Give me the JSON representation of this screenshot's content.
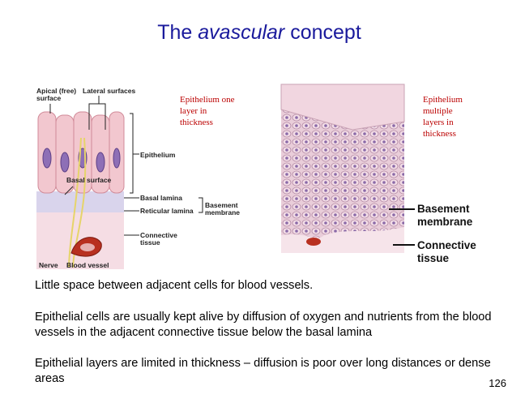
{
  "slide": {
    "title": {
      "before": "The",
      "emphasis": "avascular",
      "after": "concept"
    },
    "left_figure": {
      "labels": [
        "Apical (free) surface",
        "Lateral surfaces",
        "Epithelium",
        "Basal surface",
        "Basal lamina",
        "Reticular lamina",
        "Basement membrane",
        "Connective tissue",
        "Nerve",
        "Blood vessel"
      ],
      "note": "Epithelium one layer in thickness"
    },
    "right_figure": {
      "labels": [
        "Basement membrane",
        "Connective tissue"
      ],
      "note": "Epithelium multiple layers in thickness"
    },
    "paragraphs": [
      "Little space between adjacent cells for blood vessels.",
      "Epithelial cells are usually kept alive by diffusion of  oxygen and nutrients from the blood vessels in the adjacent connective tissue below the basal lamina",
      "Epithelial layers are limited in thickness – diffusion is poor over long distances or dense areas"
    ],
    "page_number": "126"
  }
}
